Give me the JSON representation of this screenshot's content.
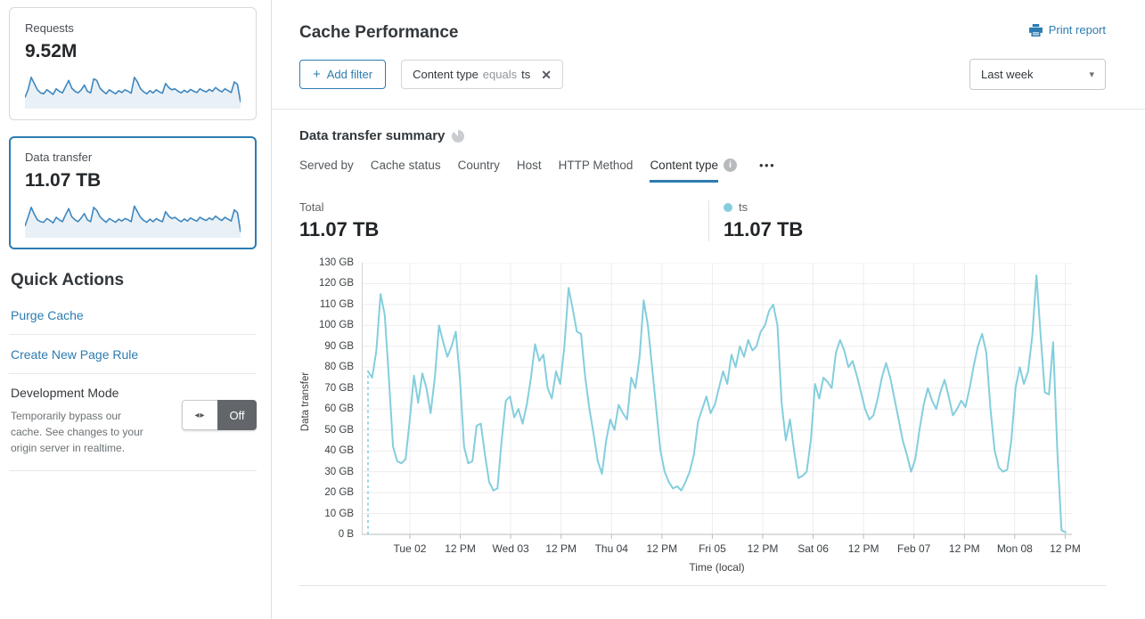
{
  "icons": {
    "plus": "+",
    "close": "✕",
    "caret_down": "▾",
    "toggle_arrows": "◂▸",
    "ellipsis": "•••",
    "info": "i"
  },
  "colors": {
    "accent_blue": "#2c7cb0",
    "chart_line": "#84cedd",
    "spark_line": "#3e87bf",
    "spark_fill": "#e9f1f7",
    "grid": "#ededee",
    "axis": "#b9bcbe"
  },
  "sidebar": {
    "requests_card": {
      "label": "Requests",
      "value": "9.52M"
    },
    "data_transfer_card": {
      "label": "Data transfer",
      "value": "11.07 TB"
    },
    "sparklines": {
      "requests": [
        30,
        55,
        95,
        75,
        55,
        45,
        42,
        55,
        48,
        40,
        58,
        50,
        45,
        65,
        85,
        60,
        50,
        45,
        55,
        70,
        50,
        45,
        90,
        85,
        60,
        50,
        42,
        55,
        48,
        42,
        52,
        46,
        55,
        50,
        44,
        95,
        80,
        58,
        48,
        42,
        52,
        45,
        55,
        48,
        44,
        75,
        62,
        55,
        58,
        50,
        45,
        53,
        47,
        56,
        50,
        46,
        58,
        52,
        48,
        56,
        50,
        62,
        54,
        48,
        58,
        52,
        46,
        80,
        72,
        15
      ],
      "data_transfer": [
        32,
        60,
        92,
        70,
        52,
        46,
        44,
        56,
        50,
        42,
        60,
        52,
        46,
        68,
        88,
        62,
        52,
        46,
        58,
        72,
        52,
        46,
        92,
        82,
        62,
        52,
        44,
        56,
        50,
        44,
        54,
        48,
        56,
        52,
        46,
        96,
        78,
        60,
        50,
        44,
        54,
        46,
        56,
        50,
        46,
        78,
        64,
        56,
        60,
        52,
        46,
        55,
        48,
        58,
        52,
        48,
        60,
        54,
        50,
        58,
        52,
        64,
        56,
        50,
        60,
        54,
        48,
        84,
        75,
        12
      ]
    },
    "quick_actions": {
      "title": "Quick Actions",
      "links": [
        {
          "label": "Purge Cache"
        },
        {
          "label": "Create New Page Rule"
        }
      ],
      "dev_mode": {
        "title": "Development Mode",
        "description": "Temporarily bypass our cache. See changes to your origin server in realtime.",
        "state_label": "Off"
      }
    }
  },
  "header": {
    "title": "Cache Performance",
    "print_report_label": "Print report"
  },
  "filters": {
    "add_filter_label": "Add filter",
    "chip": {
      "field": "Content type",
      "operator": "equals",
      "value": "ts"
    },
    "time_range_value": "Last week"
  },
  "summary": {
    "title": "Data transfer summary",
    "tabs": [
      {
        "label": "Served by",
        "active": false,
        "has_info": false
      },
      {
        "label": "Cache status",
        "active": false,
        "has_info": false
      },
      {
        "label": "Country",
        "active": false,
        "has_info": false
      },
      {
        "label": "Host",
        "active": false,
        "has_info": false
      },
      {
        "label": "HTTP Method",
        "active": false,
        "has_info": false
      },
      {
        "label": "Content type",
        "active": true,
        "has_info": true
      }
    ],
    "total": {
      "label": "Total",
      "value": "11.07 TB"
    },
    "legend": {
      "label": "ts",
      "value": "11.07 TB",
      "color": "#84cedd"
    }
  },
  "chart_data": {
    "type": "line",
    "title": "Data transfer summary",
    "xlabel": "Time (local)",
    "ylabel": "Data transfer",
    "unit": "GB",
    "ylim": [
      0,
      130
    ],
    "grid": true,
    "start_dashed": true,
    "ytick_labels": [
      "130 GB",
      "120 GB",
      "110 GB",
      "100 GB",
      "90 GB",
      "80 GB",
      "70 GB",
      "60 GB",
      "50 GB",
      "40 GB",
      "30 GB",
      "20 GB",
      "10 GB",
      "0 B"
    ],
    "xtick_labels": [
      "Tue 02",
      "12 PM",
      "Wed 03",
      "12 PM",
      "Thu 04",
      "12 PM",
      "Fri 05",
      "12 PM",
      "Sat 06",
      "12 PM",
      "Feb 07",
      "12 PM",
      "Mon 08",
      "12 PM"
    ],
    "series": [
      {
        "name": "ts",
        "color": "#84cedd",
        "values": [
          78,
          75,
          88,
          115,
          105,
          75,
          42,
          35,
          34,
          36,
          55,
          76,
          63,
          77,
          70,
          58,
          75,
          100,
          92,
          85,
          90,
          97,
          75,
          42,
          34,
          35,
          52,
          53,
          38,
          25,
          21,
          22,
          45,
          64,
          66,
          56,
          60,
          53,
          62,
          75,
          91,
          83,
          86,
          70,
          65,
          78,
          72,
          90,
          118,
          108,
          97,
          96,
          75,
          60,
          48,
          35,
          29,
          45,
          55,
          50,
          62,
          58,
          55,
          75,
          70,
          85,
          112,
          100,
          80,
          60,
          40,
          30,
          25,
          22,
          23,
          21,
          25,
          30,
          38,
          54,
          60,
          66,
          58,
          62,
          70,
          78,
          72,
          86,
          80,
          90,
          85,
          93,
          88,
          90,
          97,
          100,
          107,
          110,
          100,
          63,
          45,
          55,
          40,
          27,
          28,
          30,
          45,
          72,
          65,
          75,
          73,
          70,
          87,
          93,
          88,
          80,
          83,
          76,
          68,
          60,
          55,
          57,
          65,
          75,
          82,
          75,
          65,
          55,
          45,
          38,
          30,
          36,
          50,
          62,
          70,
          64,
          60,
          68,
          74,
          66,
          57,
          60,
          64,
          61,
          70,
          81,
          90,
          96,
          87,
          60,
          40,
          32,
          30,
          31,
          45,
          70,
          80,
          72,
          78,
          95,
          124,
          95,
          68,
          67,
          92,
          40,
          2,
          1
        ]
      }
    ]
  }
}
